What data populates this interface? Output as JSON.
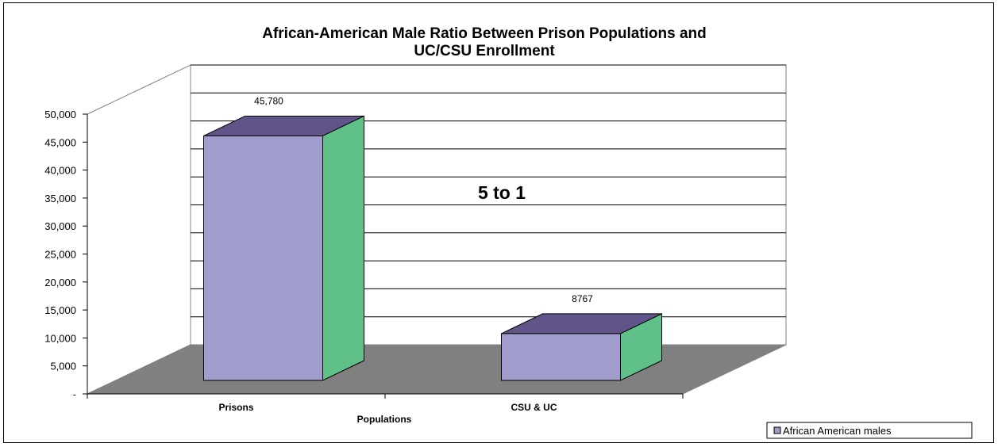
{
  "chart_data": {
    "type": "bar",
    "title_line1": "African-American Male Ratio Between Prison Populations and",
    "title_line2": "UC/CSU Enrollment",
    "categories": [
      "Prisons",
      "CSU & UC"
    ],
    "series": [
      {
        "name": "African  American  males",
        "values": [
          45780,
          8767
        ]
      }
    ],
    "data_labels": [
      "45,780",
      "8767"
    ],
    "xlabel": "Populations",
    "ylabel": "",
    "ylim": [
      0,
      50000
    ],
    "yticks": [
      0,
      5000,
      10000,
      15000,
      20000,
      25000,
      30000,
      35000,
      40000,
      45000,
      50000
    ],
    "ytick_labels": [
      "-",
      "5,000",
      "10,000",
      "15,000",
      "20,000",
      "25,000",
      "30,000",
      "35,000",
      "40,000",
      "45,000",
      "50,000"
    ],
    "annotation": "5 to 1",
    "grid": true,
    "legend_position": "bottom-right",
    "colors": {
      "bar_front": "#a09ccc",
      "bar_top": "#605488",
      "bar_side": "#5fc089",
      "floor": "#808080",
      "grid": "#000000"
    }
  }
}
